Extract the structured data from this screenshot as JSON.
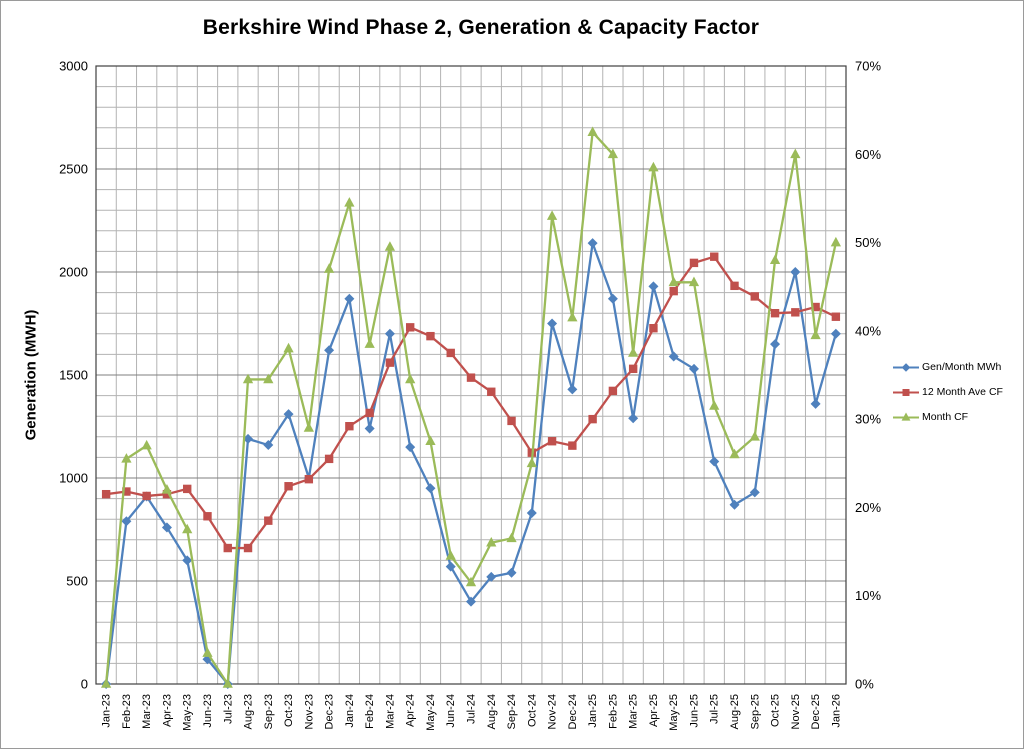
{
  "chart_data": {
    "type": "line",
    "title": "Berkshire Wind Phase 2, Generation & Capacity Factor",
    "legend_position": "right",
    "grid": {
      "vertical": true,
      "horizontal_major": true,
      "horizontal_minor": true
    },
    "colors": {
      "grid_minor": "#b3b3b3",
      "grid_major": "#7f7f7f",
      "axis": "#404040",
      "text": "#000000",
      "background": "#ffffff"
    },
    "left_axis": {
      "label": "Generation (MWH)",
      "min": 0,
      "max": 3000,
      "major": 500,
      "minor": 100,
      "tick_labels": [
        "0",
        "500",
        "1000",
        "1500",
        "2000",
        "2500",
        "3000"
      ]
    },
    "right_axis": {
      "min": 0,
      "max": 70,
      "major": 10,
      "tick_labels": [
        "0%",
        "10%",
        "20%",
        "30%",
        "40%",
        "50%",
        "60%",
        "70%"
      ]
    },
    "categories": [
      "Jan-23",
      "Feb-23",
      "Mar-23",
      "Apr-23",
      "May-23",
      "Jun-23",
      "Jul-23",
      "Aug-23",
      "Sep-23",
      "Oct-23",
      "Nov-23",
      "Dec-23",
      "Jan-24",
      "Feb-24",
      "Mar-24",
      "Apr-24",
      "May-24",
      "Jun-24",
      "Jul-24",
      "Aug-24",
      "Sep-24",
      "Oct-24",
      "Nov-24",
      "Dec-24",
      "Jan-25",
      "Feb-25",
      "Mar-25",
      "Apr-25",
      "May-25",
      "Jun-25",
      "Jul-25",
      "Aug-25",
      "Sep-25",
      "Oct-25",
      "Nov-25",
      "Dec-25",
      "Jan-26"
    ],
    "series": [
      {
        "name": "Gen/Month MWh",
        "axis": "left",
        "color": "#4f81bd",
        "marker": "diamond",
        "values": [
          0,
          790,
          910,
          760,
          600,
          120,
          0,
          1190,
          1160,
          1310,
          1000,
          1620,
          1870,
          1240,
          1700,
          1150,
          950,
          570,
          400,
          520,
          540,
          830,
          1750,
          1430,
          2140,
          1870,
          1290,
          1930,
          1590,
          1530,
          1080,
          870,
          930,
          1650,
          2000,
          1360,
          1700
        ]
      },
      {
        "name": "12 Month Ave CF",
        "axis": "right",
        "color": "#c0504d",
        "marker": "square",
        "values": [
          21.5,
          21.8,
          21.3,
          21.5,
          22.1,
          19.0,
          15.4,
          15.4,
          18.5,
          22.4,
          23.2,
          25.5,
          29.2,
          30.7,
          36.4,
          40.4,
          39.4,
          37.5,
          34.7,
          33.1,
          29.8,
          26.2,
          27.5,
          27.0,
          30.0,
          33.2,
          35.7,
          40.3,
          44.5,
          47.7,
          48.4,
          45.1,
          43.9,
          42.0,
          42.1,
          42.7,
          41.6
        ]
      },
      {
        "name": "Month CF",
        "axis": "right",
        "color": "#9bbb59",
        "marker": "triangle",
        "values": [
          0,
          25.5,
          27,
          22,
          17.5,
          3.5,
          0,
          34.5,
          34.5,
          38,
          29,
          47,
          54.5,
          38.5,
          49.5,
          34.5,
          27.5,
          14.5,
          11.5,
          16,
          16.5,
          25,
          53,
          41.5,
          62.5,
          60,
          37.5,
          58.5,
          45.5,
          45.5,
          31.5,
          26,
          28,
          48,
          60,
          39.5,
          50
        ]
      }
    ]
  }
}
